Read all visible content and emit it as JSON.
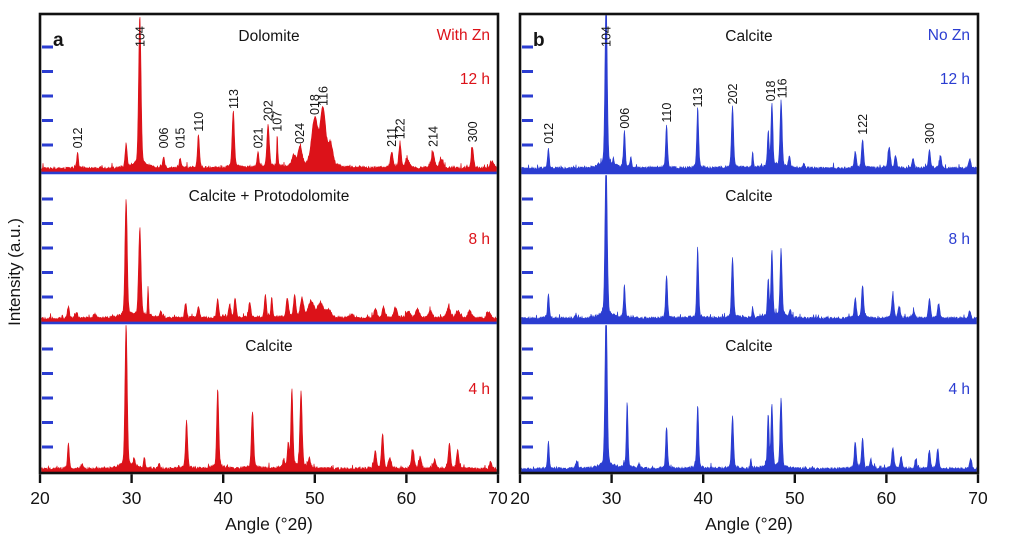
{
  "figure": {
    "background": "#ffffff"
  },
  "chart_data": {
    "type": "line",
    "title": "",
    "xlabel": "Angle (°2θ)",
    "ylabel": "Intensity (a.u.)",
    "x_range": [
      20,
      70
    ],
    "x_ticks": [
      20,
      30,
      40,
      50,
      60,
      70
    ],
    "grid": false,
    "frame_color": "#111111",
    "text_color": "#141414",
    "intensity_tick_color": "#2b3dd1",
    "panels": [
      {
        "letter": "a",
        "condition": "With Zn",
        "color": "#dc1219",
        "series": [
          {
            "time": "12 h",
            "phase": "Dolomite",
            "peaks": [
              [
                24.1,
                0.1,
                0.09
              ],
              [
                29.4,
                0.15,
                0.1
              ],
              [
                30.9,
                0.96,
                0.13
              ],
              [
                33.5,
                0.07,
                0.1
              ],
              [
                35.3,
                0.06,
                0.1
              ],
              [
                37.3,
                0.21,
                0.11
              ],
              [
                41.1,
                0.36,
                0.12
              ],
              [
                43.8,
                0.09,
                0.1
              ],
              [
                44.9,
                0.27,
                0.13
              ],
              [
                45.9,
                0.2,
                0.06
              ],
              [
                47.7,
                0.07,
                0.2
              ],
              [
                48.4,
                0.12,
                0.22
              ],
              [
                50.0,
                0.3,
                0.33
              ],
              [
                50.9,
                0.36,
                0.28
              ],
              [
                51.7,
                0.14,
                0.25
              ],
              [
                58.4,
                0.1,
                0.14
              ],
              [
                59.3,
                0.15,
                0.13
              ],
              [
                60.1,
                0.05,
                0.2
              ],
              [
                62.9,
                0.1,
                0.16
              ],
              [
                63.8,
                0.05,
                0.2
              ],
              [
                67.2,
                0.13,
                0.13
              ],
              [
                69.4,
                0.04,
                0.2
              ]
            ],
            "peak_labels": [
              {
                "t": "012",
                "x": 24.1,
                "h": 0.1
              },
              {
                "t": "104",
                "x": 30.9,
                "h": 1.0
              },
              {
                "t": "006",
                "x": 33.5,
                "h": 0.1
              },
              {
                "t": "015",
                "x": 35.3,
                "h": 0.1
              },
              {
                "t": "110",
                "x": 37.3,
                "h": 0.21
              },
              {
                "t": "113",
                "x": 41.1,
                "h": 0.36
              },
              {
                "t": "021",
                "x": 43.8,
                "h": 0.1
              },
              {
                "t": "202",
                "x": 44.9,
                "h": 0.28
              },
              {
                "t": "107",
                "x": 45.9,
                "h": 0.21
              },
              {
                "t": "024",
                "x": 48.35,
                "h": 0.13
              },
              {
                "t": "018",
                "x": 49.95,
                "h": 0.32
              },
              {
                "t": "116",
                "x": 50.9,
                "h": 0.38
              },
              {
                "t": "211",
                "x": 58.35,
                "h": 0.11
              },
              {
                "t": "122",
                "x": 59.3,
                "h": 0.16
              },
              {
                "t": "214",
                "x": 62.9,
                "h": 0.11
              },
              {
                "t": "300",
                "x": 67.2,
                "h": 0.14
              }
            ]
          },
          {
            "time": "8 h",
            "phase": "Calcite + Protodolomite",
            "peaks": [
              [
                23.1,
                0.08,
                0.1
              ],
              [
                24.0,
                0.04,
                0.12
              ],
              [
                26.0,
                0.03,
                0.15
              ],
              [
                29.4,
                0.8,
                0.12
              ],
              [
                30.9,
                0.6,
                0.13
              ],
              [
                31.8,
                0.2,
                0.06
              ],
              [
                33.2,
                0.04,
                0.12
              ],
              [
                35.9,
                0.1,
                0.11
              ],
              [
                37.3,
                0.08,
                0.11
              ],
              [
                39.4,
                0.13,
                0.11
              ],
              [
                40.7,
                0.09,
                0.11
              ],
              [
                41.3,
                0.13,
                0.11
              ],
              [
                42.9,
                0.11,
                0.11
              ],
              [
                44.6,
                0.15,
                0.11
              ],
              [
                45.3,
                0.13,
                0.09
              ],
              [
                47.0,
                0.13,
                0.13
              ],
              [
                47.8,
                0.14,
                0.13
              ],
              [
                48.6,
                0.12,
                0.18
              ],
              [
                49.6,
                0.11,
                0.3
              ],
              [
                50.6,
                0.1,
                0.3
              ],
              [
                51.5,
                0.05,
                0.3
              ],
              [
                54.0,
                0.02,
                0.3
              ],
              [
                56.6,
                0.06,
                0.14
              ],
              [
                57.5,
                0.08,
                0.14
              ],
              [
                58.8,
                0.07,
                0.18
              ],
              [
                60.2,
                0.05,
                0.2
              ],
              [
                61.2,
                0.06,
                0.2
              ],
              [
                62.6,
                0.05,
                0.2
              ],
              [
                64.6,
                0.07,
                0.2
              ],
              [
                65.6,
                0.05,
                0.2
              ],
              [
                66.9,
                0.05,
                0.2
              ],
              [
                69.0,
                0.04,
                0.2
              ]
            ],
            "peak_labels": []
          },
          {
            "time": "4 h",
            "phase": "Calcite",
            "peaks": [
              [
                23.1,
                0.17,
                0.1
              ],
              [
                24.6,
                0.03,
                0.12
              ],
              [
                29.4,
                0.97,
                0.12
              ],
              [
                30.3,
                0.05,
                0.09
              ],
              [
                31.4,
                0.07,
                0.09
              ],
              [
                33.0,
                0.03,
                0.1
              ],
              [
                36.0,
                0.32,
                0.11
              ],
              [
                39.4,
                0.53,
                0.11
              ],
              [
                43.2,
                0.38,
                0.12
              ],
              [
                46.6,
                0.05,
                0.09
              ],
              [
                47.1,
                0.16,
                0.09
              ],
              [
                47.5,
                0.52,
                0.11
              ],
              [
                48.5,
                0.51,
                0.12
              ],
              [
                49.4,
                0.06,
                0.12
              ],
              [
                56.6,
                0.12,
                0.12
              ],
              [
                57.4,
                0.23,
                0.12
              ],
              [
                58.2,
                0.07,
                0.14
              ],
              [
                60.7,
                0.13,
                0.14
              ],
              [
                61.5,
                0.08,
                0.13
              ],
              [
                63.1,
                0.06,
                0.13
              ],
              [
                64.7,
                0.17,
                0.12
              ],
              [
                65.6,
                0.13,
                0.12
              ],
              [
                69.2,
                0.05,
                0.13
              ]
            ],
            "peak_labels": []
          }
        ]
      },
      {
        "letter": "b",
        "condition": "No Zn",
        "color": "#2b3dd1",
        "series": [
          {
            "time": "12 h",
            "phase": "Calcite",
            "peaks": [
              [
                23.1,
                0.13,
                0.09
              ],
              [
                29.4,
                1.08,
                0.12
              ],
              [
                30.2,
                0.04,
                0.08
              ],
              [
                31.4,
                0.23,
                0.09
              ],
              [
                32.1,
                0.06,
                0.08
              ],
              [
                36.0,
                0.27,
                0.1
              ],
              [
                39.4,
                0.37,
                0.1
              ],
              [
                43.2,
                0.39,
                0.11
              ],
              [
                45.4,
                0.1,
                0.07
              ],
              [
                47.1,
                0.22,
                0.09
              ],
              [
                47.5,
                0.4,
                0.1
              ],
              [
                48.5,
                0.42,
                0.11
              ],
              [
                49.4,
                0.07,
                0.1
              ],
              [
                51.0,
                0.03,
                0.1
              ],
              [
                56.6,
                0.1,
                0.11
              ],
              [
                57.4,
                0.18,
                0.11
              ],
              [
                60.3,
                0.13,
                0.13
              ],
              [
                61.0,
                0.08,
                0.11
              ],
              [
                62.9,
                0.06,
                0.11
              ],
              [
                64.7,
                0.12,
                0.11
              ],
              [
                65.9,
                0.08,
                0.11
              ],
              [
                69.1,
                0.06,
                0.11
              ]
            ],
            "peak_labels": [
              {
                "t": "012",
                "x": 23.1,
                "h": 0.13
              },
              {
                "t": "104",
                "x": 29.4,
                "h": 1.0
              },
              {
                "t": "006",
                "x": 31.4,
                "h": 0.23
              },
              {
                "t": "110",
                "x": 36.0,
                "h": 0.27
              },
              {
                "t": "113",
                "x": 39.4,
                "h": 0.37
              },
              {
                "t": "202",
                "x": 43.2,
                "h": 0.39
              },
              {
                "t": "018",
                "x": 47.35,
                "h": 0.41
              },
              {
                "t": "116",
                "x": 48.6,
                "h": 0.43
              },
              {
                "t": "122",
                "x": 57.4,
                "h": 0.19
              },
              {
                "t": "300",
                "x": 64.7,
                "h": 0.13
              }
            ]
          },
          {
            "time": "8 h",
            "phase": "Calcite",
            "peaks": [
              [
                23.1,
                0.17,
                0.09
              ],
              [
                26.1,
                0.03,
                0.1
              ],
              [
                29.4,
                1.08,
                0.12
              ],
              [
                31.4,
                0.22,
                0.09
              ],
              [
                36.0,
                0.29,
                0.1
              ],
              [
                39.4,
                0.46,
                0.1
              ],
              [
                43.2,
                0.41,
                0.11
              ],
              [
                45.4,
                0.07,
                0.07
              ],
              [
                47.1,
                0.25,
                0.09
              ],
              [
                47.5,
                0.44,
                0.1
              ],
              [
                48.5,
                0.46,
                0.11
              ],
              [
                49.5,
                0.05,
                0.1
              ],
              [
                56.6,
                0.13,
                0.11
              ],
              [
                57.4,
                0.22,
                0.11
              ],
              [
                60.7,
                0.15,
                0.13
              ],
              [
                61.4,
                0.08,
                0.11
              ],
              [
                63.0,
                0.05,
                0.11
              ],
              [
                64.7,
                0.13,
                0.11
              ],
              [
                65.7,
                0.1,
                0.11
              ],
              [
                69.1,
                0.05,
                0.11
              ]
            ],
            "peak_labels": []
          },
          {
            "time": "4 h",
            "phase": "Calcite",
            "peaks": [
              [
                23.1,
                0.19,
                0.09
              ],
              [
                26.2,
                0.05,
                0.1
              ],
              [
                29.4,
                1.08,
                0.12
              ],
              [
                31.7,
                0.44,
                0.09
              ],
              [
                33.0,
                0.03,
                0.1
              ],
              [
                36.0,
                0.28,
                0.1
              ],
              [
                39.4,
                0.42,
                0.1
              ],
              [
                43.2,
                0.35,
                0.11
              ],
              [
                45.2,
                0.06,
                0.07
              ],
              [
                47.1,
                0.35,
                0.09
              ],
              [
                47.5,
                0.42,
                0.1
              ],
              [
                48.5,
                0.46,
                0.11
              ],
              [
                56.6,
                0.17,
                0.11
              ],
              [
                57.4,
                0.2,
                0.11
              ],
              [
                58.3,
                0.06,
                0.11
              ],
              [
                60.7,
                0.14,
                0.12
              ],
              [
                61.6,
                0.08,
                0.11
              ],
              [
                63.2,
                0.06,
                0.11
              ],
              [
                64.7,
                0.12,
                0.11
              ],
              [
                65.6,
                0.13,
                0.11
              ],
              [
                69.2,
                0.07,
                0.11
              ]
            ],
            "peak_labels": []
          }
        ]
      }
    ]
  }
}
